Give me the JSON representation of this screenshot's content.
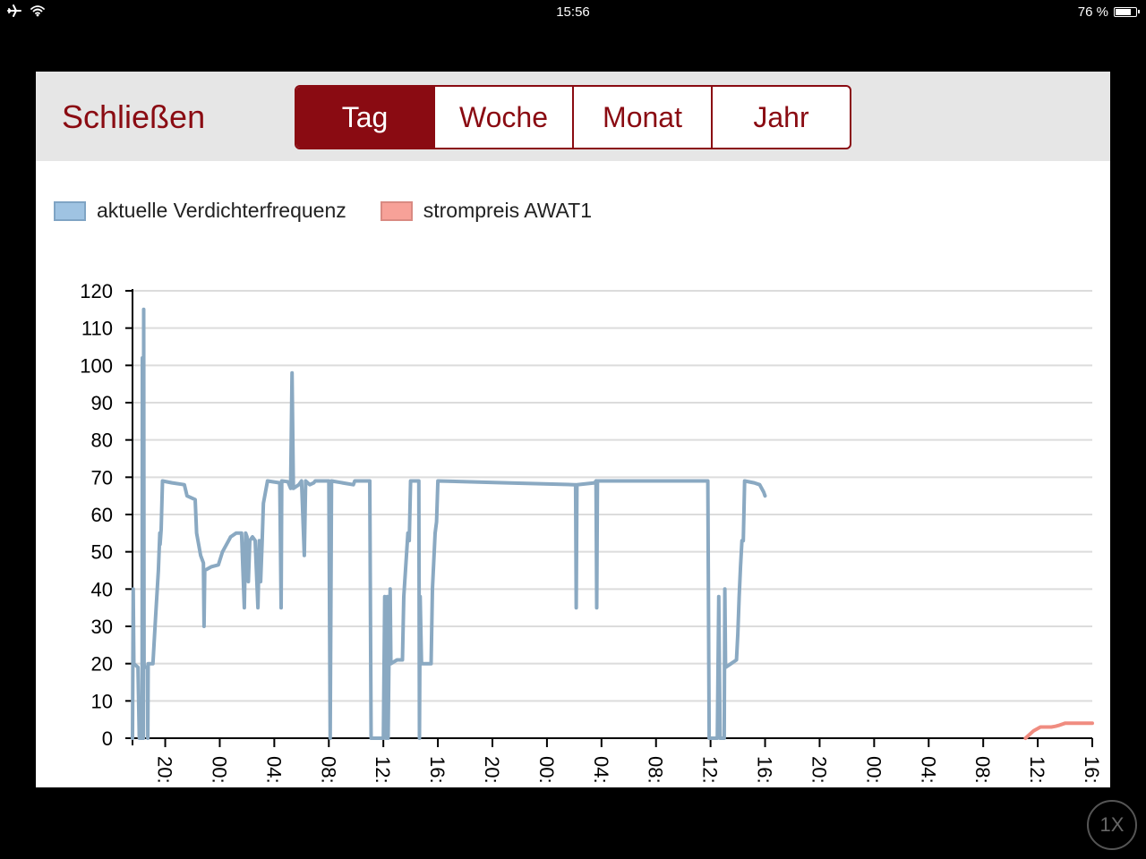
{
  "status": {
    "time": "15:56",
    "battery": "76 %",
    "battery_level": 0.76,
    "icons": [
      "airplane-icon",
      "wifi-icon"
    ]
  },
  "toolbar": {
    "close_label": "Schließen",
    "tabs": [
      {
        "label": "Tag",
        "active": true
      },
      {
        "label": "Woche",
        "active": false
      },
      {
        "label": "Monat",
        "active": false
      },
      {
        "label": "Jahr",
        "active": false
      }
    ]
  },
  "zoom_label": "1X",
  "colors": {
    "accent": "#8a0b12",
    "series1": "#8aa9c2",
    "series2": "#f08c80",
    "toolbar_bg": "#e6e6e6"
  },
  "chart_data": {
    "type": "line",
    "title": "",
    "xlabel": "",
    "ylabel": "",
    "ylim": [
      0,
      120
    ],
    "yticks": [
      "0",
      "10",
      "20",
      "30",
      "40",
      "50",
      "60",
      "70",
      "80",
      "90",
      "100",
      "110",
      "120"
    ],
    "xlim": [
      17.6,
      88.0
    ],
    "x_unit": "hours since day 1 00:00",
    "xticks": [
      {
        "x": 20,
        "label": "20:"
      },
      {
        "x": 24,
        "label": "00:"
      },
      {
        "x": 28,
        "label": "04:"
      },
      {
        "x": 32,
        "label": "08:"
      },
      {
        "x": 36,
        "label": "12:"
      },
      {
        "x": 40,
        "label": "16:"
      },
      {
        "x": 44,
        "label": "20:"
      },
      {
        "x": 48,
        "label": "00:"
      },
      {
        "x": 52,
        "label": "04:"
      },
      {
        "x": 56,
        "label": "08:"
      },
      {
        "x": 60,
        "label": "12:"
      },
      {
        "x": 64,
        "label": "16:"
      },
      {
        "x": 68,
        "label": "20:"
      },
      {
        "x": 72,
        "label": "00:"
      },
      {
        "x": 76,
        "label": "04:"
      },
      {
        "x": 80,
        "label": "08:"
      },
      {
        "x": 84,
        "label": "12:"
      },
      {
        "x": 88,
        "label": "16:"
      }
    ],
    "grid": true,
    "legend": "top-left",
    "series": [
      {
        "name": "aktuelle Verdichterfrequenz",
        "color": "#8aa9c2",
        "points": [
          [
            17.6,
            0
          ],
          [
            17.65,
            40
          ],
          [
            17.7,
            20
          ],
          [
            18.0,
            19
          ],
          [
            18.1,
            0
          ],
          [
            18.3,
            0
          ],
          [
            18.32,
            102
          ],
          [
            18.35,
            20
          ],
          [
            18.4,
            0
          ],
          [
            18.42,
            115
          ],
          [
            18.45,
            20
          ],
          [
            18.5,
            19
          ],
          [
            18.7,
            19
          ],
          [
            18.72,
            0
          ],
          [
            18.75,
            20
          ],
          [
            19.1,
            20
          ],
          [
            19.3,
            33
          ],
          [
            19.5,
            45
          ],
          [
            19.6,
            55
          ],
          [
            19.62,
            52
          ],
          [
            19.7,
            56
          ],
          [
            19.8,
            69
          ],
          [
            20.5,
            68.5
          ],
          [
            21.4,
            68
          ],
          [
            21.6,
            65
          ],
          [
            22.2,
            64
          ],
          [
            22.3,
            55
          ],
          [
            22.6,
            49
          ],
          [
            22.8,
            47
          ],
          [
            22.85,
            30
          ],
          [
            22.9,
            45
          ],
          [
            23.4,
            46
          ],
          [
            23.9,
            46.5
          ],
          [
            24.2,
            50
          ],
          [
            24.5,
            52
          ],
          [
            24.8,
            54
          ],
          [
            25.2,
            55
          ],
          [
            25.6,
            55
          ],
          [
            25.8,
            35
          ],
          [
            25.9,
            55
          ],
          [
            26.0,
            54
          ],
          [
            26.1,
            42
          ],
          [
            26.2,
            53
          ],
          [
            26.4,
            54
          ],
          [
            26.6,
            53
          ],
          [
            26.8,
            35
          ],
          [
            26.9,
            53
          ],
          [
            27.0,
            42
          ],
          [
            27.1,
            52
          ],
          [
            27.2,
            63
          ],
          [
            27.5,
            69
          ],
          [
            28.4,
            68.5
          ],
          [
            28.5,
            35
          ],
          [
            28.55,
            69
          ],
          [
            29.0,
            68.8
          ],
          [
            29.2,
            67
          ],
          [
            29.3,
            98
          ],
          [
            29.4,
            67
          ],
          [
            29.8,
            68
          ],
          [
            30.0,
            69
          ],
          [
            30.2,
            49
          ],
          [
            30.3,
            69
          ],
          [
            30.6,
            68
          ],
          [
            30.9,
            68.5
          ],
          [
            31.0,
            69
          ],
          [
            31.5,
            69
          ],
          [
            31.8,
            69
          ],
          [
            32.0,
            69
          ],
          [
            32.1,
            0
          ],
          [
            32.2,
            69
          ],
          [
            33.0,
            68.5
          ],
          [
            33.8,
            68
          ],
          [
            33.9,
            69
          ],
          [
            34.4,
            69
          ],
          [
            35.0,
            69
          ],
          [
            35.1,
            0
          ],
          [
            36.0,
            0
          ],
          [
            36.1,
            38
          ],
          [
            36.2,
            0
          ],
          [
            36.3,
            38
          ],
          [
            36.35,
            0
          ],
          [
            36.4,
            18
          ],
          [
            36.5,
            40
          ],
          [
            36.55,
            20
          ],
          [
            37.0,
            21
          ],
          [
            37.4,
            21
          ],
          [
            37.5,
            38
          ],
          [
            37.8,
            55
          ],
          [
            37.9,
            53
          ],
          [
            38.0,
            69
          ],
          [
            38.5,
            69
          ],
          [
            38.6,
            69
          ],
          [
            38.65,
            0
          ],
          [
            38.7,
            38
          ],
          [
            38.8,
            20
          ],
          [
            39.2,
            20
          ],
          [
            39.5,
            20
          ],
          [
            39.6,
            40
          ],
          [
            39.8,
            55
          ],
          [
            39.9,
            58
          ],
          [
            40.0,
            69
          ],
          [
            45.0,
            68.5
          ],
          [
            50.0,
            68
          ],
          [
            50.1,
            68
          ],
          [
            50.15,
            35
          ],
          [
            50.2,
            68
          ],
          [
            51.5,
            68.5
          ],
          [
            51.6,
            69
          ],
          [
            51.65,
            35
          ],
          [
            51.7,
            69
          ],
          [
            53.0,
            69
          ],
          [
            58.0,
            69
          ],
          [
            59.8,
            69
          ],
          [
            59.9,
            0
          ],
          [
            60.5,
            0
          ],
          [
            60.6,
            38
          ],
          [
            60.7,
            0
          ],
          [
            61.0,
            0
          ],
          [
            61.05,
            40
          ],
          [
            61.1,
            19
          ],
          [
            61.5,
            20
          ],
          [
            61.9,
            21
          ],
          [
            62.0,
            28
          ],
          [
            62.1,
            38
          ],
          [
            62.2,
            46
          ],
          [
            62.3,
            53
          ],
          [
            62.4,
            53
          ],
          [
            62.5,
            69
          ],
          [
            63.2,
            68.5
          ],
          [
            63.6,
            68
          ],
          [
            63.9,
            66
          ],
          [
            64.0,
            65
          ]
        ]
      },
      {
        "name": "strompreis AWAT1",
        "color": "#f08c80",
        "points": [
          [
            83.1,
            0
          ],
          [
            83.7,
            2
          ],
          [
            84.2,
            3
          ],
          [
            84.5,
            3
          ],
          [
            85.0,
            3
          ],
          [
            85.3,
            3.2
          ],
          [
            85.6,
            3.5
          ],
          [
            86.0,
            4
          ],
          [
            86.5,
            4
          ],
          [
            87.0,
            4
          ],
          [
            88.0,
            4
          ]
        ]
      }
    ]
  }
}
